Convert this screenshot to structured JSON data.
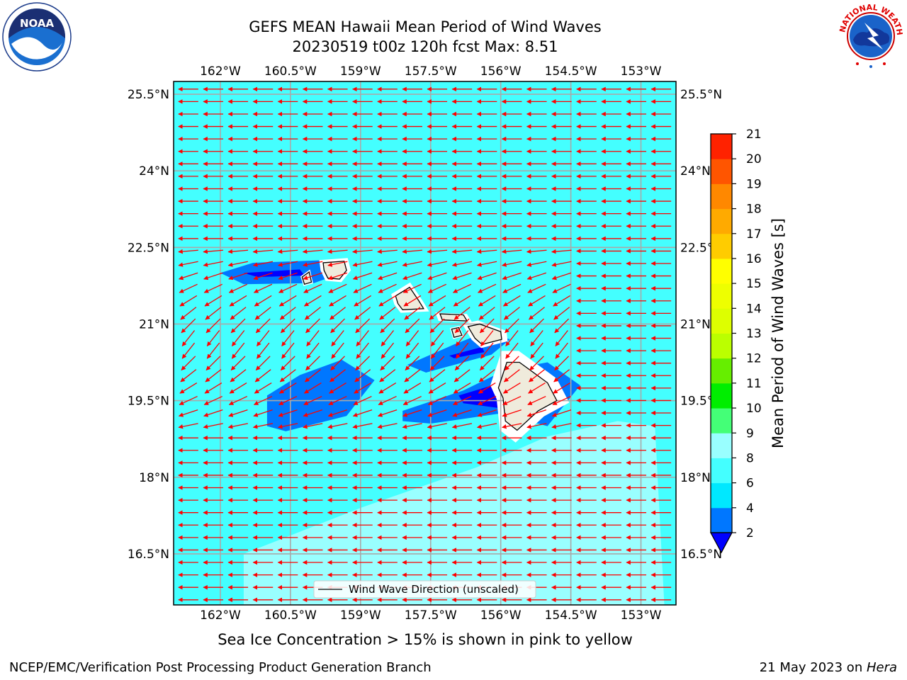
{
  "title_line1": "GEFS MEAN Hawaii Mean Period of Wind Waves",
  "title_line2": "20230519 t00z 120h fcst   Max: 8.51",
  "footer_left": "NCEP/EMC/Verification Post Processing Product Generation Branch",
  "footer_right_prefix": "21 May 2023 on ",
  "footer_right_host": "Hera",
  "subnote": "Sea Ice Concentration > 15% is shown in pink to yellow",
  "logos": {
    "left": "NOAA",
    "right": "NATIONAL WEATHER SERVICE"
  },
  "chart_data": {
    "type": "heatmap",
    "xlim": [
      -163.0,
      -152.25
    ],
    "ylim": [
      15.5,
      25.75
    ],
    "x_ticks": [
      -162,
      -160.5,
      -159,
      -157.5,
      -156,
      -154.5,
      -153
    ],
    "x_tick_labels": [
      "162°W",
      "160.5°W",
      "159°W",
      "157.5°W",
      "156°W",
      "154.5°W",
      "153°W"
    ],
    "y_ticks": [
      16.5,
      18,
      19.5,
      21,
      22.5,
      24,
      25.5
    ],
    "y_tick_labels": [
      "16.5°N",
      "18°N",
      "19.5°N",
      "21°N",
      "22.5°N",
      "24°N",
      "25.5°N"
    ],
    "grid": true,
    "legend": {
      "label": "Wind Wave Direction (unscaled)",
      "placement": "lower-center"
    },
    "colorbar": {
      "label": "Mean Period of Wind Waves [s]",
      "tick_labels": [
        "2",
        "4",
        "6",
        "8",
        "9",
        "10",
        "11",
        "12",
        "13",
        "14",
        "15",
        "16",
        "17",
        "18",
        "19",
        "20",
        "21"
      ],
      "levels": [
        2,
        4,
        6,
        8,
        9,
        10,
        11,
        12,
        13,
        14,
        15,
        16,
        17,
        18,
        19,
        20,
        21
      ],
      "colors": [
        "#0077ff",
        "#00e8ff",
        "#44ffff",
        "#99ffff",
        "#44ff77",
        "#00ee00",
        "#66ee00",
        "#bbff00",
        "#ddff00",
        "#eeff00",
        "#ffff00",
        "#ffcc00",
        "#ffaa00",
        "#ff8800",
        "#ff5500",
        "#ff2200"
      ],
      "under_color": "#0000ff",
      "extend": "min"
    },
    "field": {
      "background_value": 6.5,
      "regions": [
        {
          "name": "southeast-light",
          "value": 8.3,
          "color": "#99ffff",
          "points": [
            [
              -159.0,
              17.4
            ],
            [
              -156.5,
              18.2
            ],
            [
              -155.0,
              18.8
            ],
            [
              -153.5,
              19.1
            ],
            [
              -152.7,
              19.0
            ],
            [
              -152.5,
              15.5
            ],
            [
              -161.5,
              15.5
            ],
            [
              -161.5,
              16.5
            ]
          ]
        },
        {
          "name": "kauai-lee",
          "value": 3.5,
          "color": "#0077ff",
          "points": [
            [
              -162.0,
              22.0
            ],
            [
              -161.3,
              22.2
            ],
            [
              -159.8,
              22.25
            ],
            [
              -159.4,
              22.0
            ],
            [
              -160.0,
              21.8
            ],
            [
              -161.5,
              21.78
            ]
          ]
        },
        {
          "name": "kauai-core",
          "value": 1.9,
          "color": "#0000ff",
          "points": [
            [
              -161.5,
              22.0
            ],
            [
              -160.3,
              22.07
            ],
            [
              -160.2,
              21.95
            ],
            [
              -161.2,
              21.92
            ]
          ]
        },
        {
          "name": "west-blob",
          "value": 3.5,
          "color": "#0077ff",
          "points": [
            [
              -161.0,
              19.6
            ],
            [
              -160.3,
              20.0
            ],
            [
              -159.4,
              20.3
            ],
            [
              -158.7,
              19.9
            ],
            [
              -159.3,
              19.2
            ],
            [
              -160.6,
              18.9
            ],
            [
              -161.0,
              19.0
            ]
          ]
        },
        {
          "name": "maui-lee",
          "value": 3.5,
          "color": "#0077ff",
          "points": [
            [
              -158.0,
              20.2
            ],
            [
              -157.0,
              20.6
            ],
            [
              -156.3,
              20.85
            ],
            [
              -155.8,
              20.7
            ],
            [
              -156.2,
              20.4
            ],
            [
              -157.6,
              20.05
            ]
          ]
        },
        {
          "name": "maui-core",
          "value": 1.9,
          "color": "#0000ff",
          "points": [
            [
              -157.1,
              20.38
            ],
            [
              -156.4,
              20.55
            ],
            [
              -156.35,
              20.45
            ],
            [
              -157.0,
              20.33
            ]
          ]
        },
        {
          "name": "bigisland-lee",
          "value": 3.5,
          "color": "#0077ff",
          "points": [
            [
              -158.1,
              19.3
            ],
            [
              -156.8,
              19.7
            ],
            [
              -155.9,
              20.1
            ],
            [
              -155.0,
              20.25
            ],
            [
              -154.3,
              19.8
            ],
            [
              -155.0,
              19.0
            ],
            [
              -156.0,
              19.25
            ],
            [
              -157.5,
              19.05
            ],
            [
              -158.1,
              19.1
            ]
          ]
        },
        {
          "name": "bigisland-core",
          "value": 1.9,
          "color": "#0000ff",
          "points": [
            [
              -156.9,
              19.6
            ],
            [
              -156.0,
              19.85
            ],
            [
              -155.8,
              19.6
            ],
            [
              -156.0,
              19.35
            ],
            [
              -156.8,
              19.45
            ]
          ]
        }
      ]
    },
    "islands": [
      {
        "name": "Niihau",
        "points": [
          [
            -160.25,
            21.92
          ],
          [
            -160.1,
            22.02
          ],
          [
            -160.05,
            21.82
          ],
          [
            -160.2,
            21.78
          ]
        ]
      },
      {
        "name": "Kauai",
        "points": [
          [
            -159.8,
            22.2
          ],
          [
            -159.35,
            22.23
          ],
          [
            -159.3,
            22.05
          ],
          [
            -159.45,
            21.88
          ],
          [
            -159.7,
            21.9
          ],
          [
            -159.78,
            22.05
          ]
        ]
      },
      {
        "name": "Oahu",
        "points": [
          [
            -158.25,
            21.55
          ],
          [
            -157.95,
            21.72
          ],
          [
            -157.75,
            21.45
          ],
          [
            -157.65,
            21.3
          ],
          [
            -158.1,
            21.28
          ],
          [
            -158.2,
            21.4
          ]
        ]
      },
      {
        "name": "Molokai",
        "points": [
          [
            -157.3,
            21.2
          ],
          [
            -156.8,
            21.18
          ],
          [
            -156.72,
            21.06
          ],
          [
            -157.25,
            21.08
          ]
        ]
      },
      {
        "name": "Lanai",
        "points": [
          [
            -157.05,
            20.9
          ],
          [
            -156.9,
            20.93
          ],
          [
            -156.83,
            20.78
          ],
          [
            -157.0,
            20.74
          ]
        ]
      },
      {
        "name": "Maui",
        "points": [
          [
            -156.7,
            20.95
          ],
          [
            -156.45,
            21.0
          ],
          [
            -156.0,
            20.85
          ],
          [
            -155.98,
            20.7
          ],
          [
            -156.4,
            20.6
          ],
          [
            -156.55,
            20.72
          ]
        ]
      },
      {
        "name": "Hawaii",
        "points": [
          [
            -155.87,
            20.25
          ],
          [
            -155.6,
            20.25
          ],
          [
            -155.0,
            19.85
          ],
          [
            -154.8,
            19.5
          ],
          [
            -155.2,
            19.3
          ],
          [
            -155.65,
            18.92
          ],
          [
            -155.9,
            19.1
          ],
          [
            -155.95,
            19.55
          ],
          [
            -156.05,
            19.75
          ]
        ]
      }
    ],
    "vectors": {
      "description_unit": "direction in degrees (toward, clockwise from east)",
      "default_direction_deg": 180,
      "rows_lat": [
        15.6,
        25.6
      ],
      "cols_lon": [
        -162.95,
        -152.3
      ]
    }
  }
}
